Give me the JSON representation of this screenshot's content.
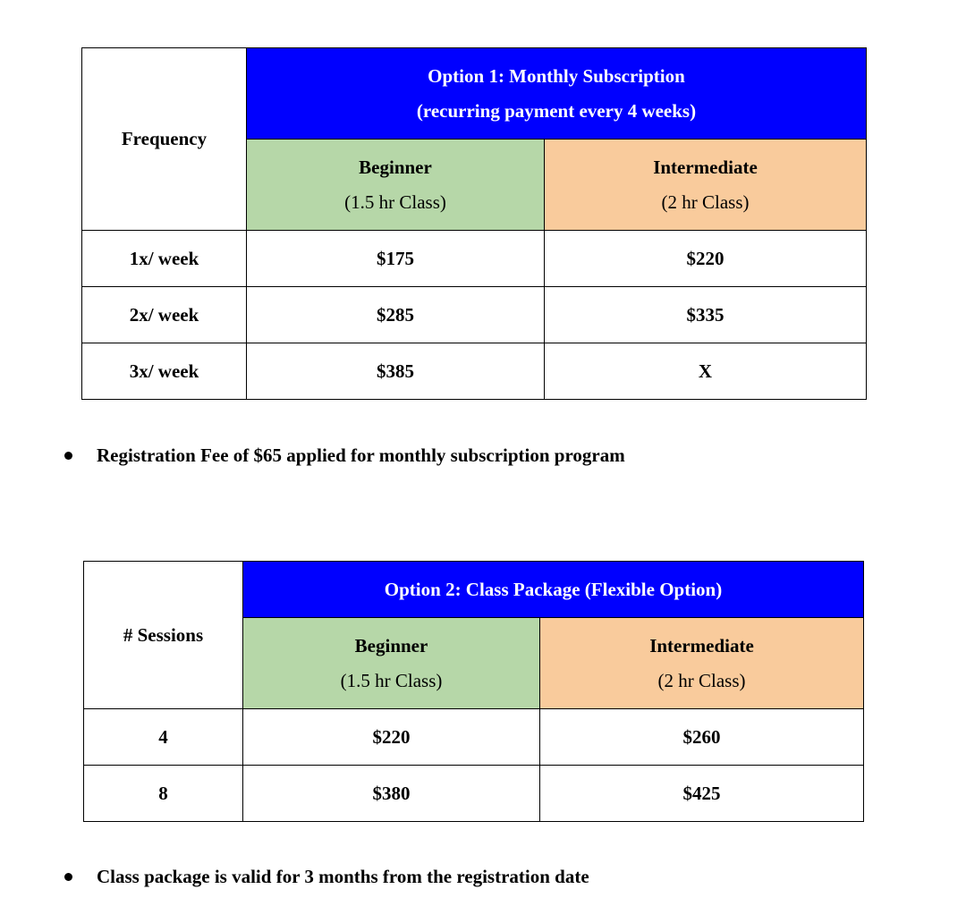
{
  "table1": {
    "row_header": "Frequency",
    "title_line1": "Option 1: Monthly Subscription",
    "title_line2": "(recurring payment every 4 weeks)",
    "columns": [
      {
        "name": "Beginner",
        "sub": "(1.5 hr Class)"
      },
      {
        "name": "Intermediate",
        "sub": "(2 hr Class)"
      }
    ],
    "rows": [
      {
        "label": "1x/ week",
        "beginner": "$175",
        "intermediate": "$220"
      },
      {
        "label": "2x/ week",
        "beginner": "$285",
        "intermediate": "$335"
      },
      {
        "label": "3x/ week",
        "beginner": "$385",
        "intermediate": "X"
      }
    ]
  },
  "note1": "Registration Fee of $65 applied for monthly subscription program",
  "table2": {
    "row_header": "# Sessions",
    "title": "Option 2: Class Package (Flexible Option)",
    "columns": [
      {
        "name": "Beginner",
        "sub": "(1.5 hr Class)"
      },
      {
        "name": "Intermediate",
        "sub": "(2 hr Class)"
      }
    ],
    "rows": [
      {
        "label": "4",
        "beginner": "$220",
        "intermediate": "$260"
      },
      {
        "label": "8",
        "beginner": "$380",
        "intermediate": "$425"
      }
    ]
  },
  "note2": "Class package is valid for 3 months from the registration date",
  "colors": {
    "header_blue": "#0000ff",
    "beginner_green": "#b6d7a8",
    "intermediate_orange": "#f9cb9c"
  }
}
